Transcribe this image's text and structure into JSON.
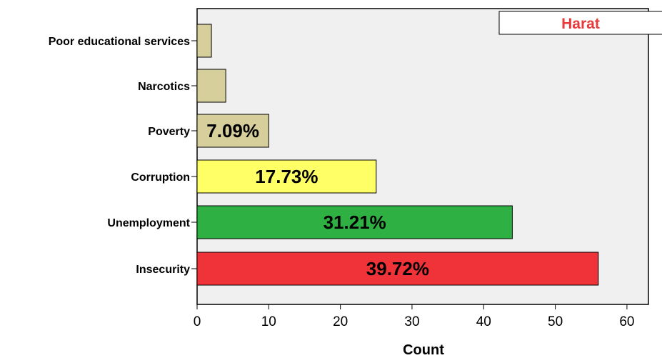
{
  "chart_data": {
    "type": "bar",
    "orientation": "horizontal",
    "title": "",
    "xlabel": "Count",
    "ylabel": "",
    "xlim": [
      0,
      60
    ],
    "x_ticks": [
      0,
      10,
      20,
      30,
      40,
      50,
      60
    ],
    "categories": [
      "Poor educational services",
      "Narcotics",
      "Poverty",
      "Corruption",
      "Unemployment",
      "Insecurity"
    ],
    "values": [
      2,
      4,
      10,
      25,
      44,
      56
    ],
    "data_labels": [
      "",
      "",
      "7.09%",
      "17.73%",
      "31.21%",
      "39.72%"
    ],
    "bar_colors": [
      "#d6cf9c",
      "#d6cf9c",
      "#d6cf9c",
      "#ffff66",
      "#2eb043",
      "#ef3338"
    ],
    "plot_background": "#f0f0f0",
    "grid": false,
    "legend": {
      "text": "Harat",
      "color": "#e83a3a",
      "placement": "top-right"
    }
  }
}
